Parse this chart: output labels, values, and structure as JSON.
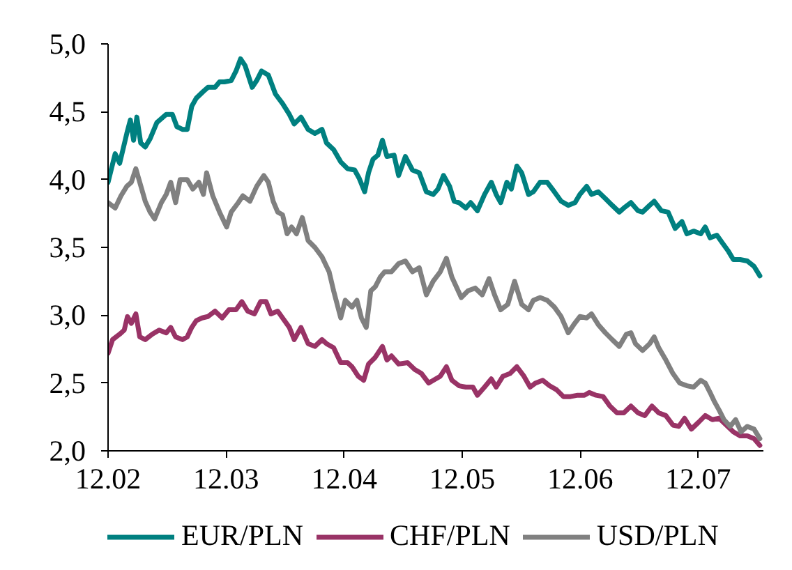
{
  "chart_data": {
    "type": "line",
    "series": [
      {
        "name": "EUR/PLN",
        "color": "#008080",
        "x": [
          "2002-12-01",
          "2002-12-23",
          "2003-01-06",
          "2003-01-28",
          "2003-02-08",
          "2003-02-18",
          "2003-02-28",
          "2003-03-12",
          "2003-03-26",
          "2003-04-10",
          "2003-05-01",
          "2003-05-30",
          "2003-06-18",
          "2003-07-02",
          "2003-07-19",
          "2003-08-03",
          "2003-08-17",
          "2003-08-31",
          "2003-09-22",
          "2003-10-06",
          "2003-10-28",
          "2003-11-11",
          "2003-11-26",
          "2003-12-17",
          "2004-01-01",
          "2004-01-15",
          "2004-01-29",
          "2004-02-20",
          "2004-03-05",
          "2004-03-20",
          "2004-04-10",
          "2004-05-02",
          "2004-05-24",
          "2004-06-14",
          "2004-06-29",
          "2004-07-20",
          "2004-08-11",
          "2004-09-01",
          "2004-09-23",
          "2004-10-07",
          "2004-10-29",
          "2004-11-20",
          "2004-12-11",
          "2005-01-02",
          "2005-01-16",
          "2005-02-02",
          "2005-02-14",
          "2005-02-28",
          "2005-03-15",
          "2005-03-29",
          "2005-04-12",
          "2005-05-04",
          "2005-05-18",
          "2005-06-08",
          "2005-06-30",
          "2005-07-21",
          "2005-08-12",
          "2005-09-02",
          "2005-09-17",
          "2005-10-04",
          "2005-10-23",
          "2005-11-06",
          "2005-11-21",
          "2005-12-12",
          "2005-12-27",
          "2006-01-17",
          "2006-02-08",
          "2006-03-01",
          "2006-03-16",
          "2006-03-30",
          "2006-04-18",
          "2006-05-02",
          "2006-05-19",
          "2006-06-03",
          "2006-06-24",
          "2006-07-09",
          "2006-07-30",
          "2006-08-21",
          "2006-09-12",
          "2006-10-03",
          "2006-10-25",
          "2006-11-15",
          "2006-11-30",
          "2006-12-21",
          "2007-01-05",
          "2007-01-26",
          "2007-02-17",
          "2007-03-10",
          "2007-04-01",
          "2007-04-15",
          "2007-05-07",
          "2007-05-29",
          "2007-06-12",
          "2007-07-04",
          "2007-07-18",
          "2007-08-09",
          "2007-08-30",
          "2007-09-21",
          "2007-10-12",
          "2007-10-27",
          "2007-11-17",
          "2007-12-09",
          "2007-12-23",
          "2008-01-07",
          "2008-01-28",
          "2008-02-15",
          "2008-03-04",
          "2008-03-19",
          "2008-04-09",
          "2008-05-01",
          "2008-05-22",
          "2008-06-09"
        ],
        "values": [
          3.98,
          4.19,
          4.12,
          4.34,
          4.44,
          4.29,
          4.46,
          4.27,
          4.24,
          4.3,
          4.42,
          4.48,
          4.48,
          4.39,
          4.37,
          4.37,
          4.54,
          4.6,
          4.65,
          4.68,
          4.68,
          4.72,
          4.72,
          4.73,
          4.8,
          4.89,
          4.84,
          4.68,
          4.73,
          4.8,
          4.77,
          4.63,
          4.56,
          4.48,
          4.41,
          4.46,
          4.37,
          4.34,
          4.37,
          4.27,
          4.22,
          4.13,
          4.08,
          4.07,
          4.01,
          3.91,
          4.05,
          4.15,
          4.18,
          4.29,
          4.17,
          4.18,
          4.03,
          4.17,
          4.07,
          4.05,
          3.91,
          3.89,
          3.93,
          4.03,
          3.95,
          3.84,
          3.83,
          3.79,
          3.83,
          3.77,
          3.89,
          3.98,
          3.89,
          3.83,
          3.98,
          3.93,
          4.1,
          4.05,
          3.89,
          3.91,
          3.98,
          3.98,
          3.91,
          3.84,
          3.81,
          3.83,
          3.89,
          3.95,
          3.89,
          3.91,
          3.86,
          3.81,
          3.76,
          3.79,
          3.83,
          3.77,
          3.76,
          3.81,
          3.84,
          3.77,
          3.76,
          3.64,
          3.69,
          3.6,
          3.62,
          3.6,
          3.65,
          3.57,
          3.59,
          3.53,
          3.47,
          3.41,
          3.41,
          3.4,
          3.36,
          3.29
        ]
      },
      {
        "name": "CHF/PLN",
        "color": "#993366",
        "x": [
          "2002-12-01",
          "2002-12-15",
          "2003-01-06",
          "2003-01-20",
          "2003-01-30",
          "2003-02-11",
          "2003-02-25",
          "2003-03-09",
          "2003-03-26",
          "2003-04-17",
          "2003-05-08",
          "2003-05-30",
          "2003-06-13",
          "2003-06-28",
          "2003-07-19",
          "2003-08-03",
          "2003-08-17",
          "2003-08-31",
          "2003-09-18",
          "2003-10-06",
          "2003-10-28",
          "2003-11-19",
          "2003-12-10",
          "2004-01-01",
          "2004-01-19",
          "2004-02-06",
          "2004-02-27",
          "2004-03-17",
          "2004-04-03",
          "2004-04-18",
          "2004-05-09",
          "2004-05-24",
          "2004-06-14",
          "2004-06-29",
          "2004-07-20",
          "2004-08-11",
          "2004-09-01",
          "2004-09-23",
          "2004-10-07",
          "2004-10-29",
          "2004-11-20",
          "2004-12-11",
          "2004-12-25",
          "2005-01-13",
          "2005-01-30",
          "2005-02-14",
          "2005-03-07",
          "2005-03-29",
          "2005-04-12",
          "2005-04-26",
          "2005-05-18",
          "2005-06-15",
          "2005-07-07",
          "2005-07-28",
          "2005-08-19",
          "2005-09-10",
          "2005-09-24",
          "2005-10-13",
          "2005-10-30",
          "2005-11-21",
          "2005-12-12",
          "2006-01-03",
          "2006-01-17",
          "2006-02-08",
          "2006-03-01",
          "2006-03-16",
          "2006-04-06",
          "2006-04-28",
          "2006-05-19",
          "2006-06-10",
          "2006-06-29",
          "2006-07-16",
          "2006-08-07",
          "2006-08-28",
          "2006-09-19",
          "2006-10-10",
          "2006-11-01",
          "2006-11-23",
          "2006-12-14",
          "2006-12-29",
          "2007-01-19",
          "2007-02-10",
          "2007-03-03",
          "2007-03-25",
          "2007-04-15",
          "2007-05-07",
          "2007-05-29",
          "2007-06-19",
          "2007-07-11",
          "2007-08-01",
          "2007-08-23",
          "2007-09-14",
          "2007-10-02",
          "2007-10-20",
          "2007-11-10",
          "2007-12-02",
          "2007-12-23",
          "2008-01-14",
          "2008-02-04",
          "2008-02-26",
          "2008-03-19",
          "2008-04-09",
          "2008-05-01",
          "2008-05-22",
          "2008-06-09"
        ],
        "values": [
          2.72,
          2.82,
          2.86,
          2.89,
          2.99,
          2.94,
          3.01,
          2.84,
          2.82,
          2.86,
          2.89,
          2.87,
          2.91,
          2.84,
          2.82,
          2.84,
          2.91,
          2.96,
          2.98,
          2.99,
          3.03,
          2.98,
          3.04,
          3.04,
          3.1,
          3.03,
          3.01,
          3.1,
          3.1,
          3.01,
          3.03,
          2.98,
          2.91,
          2.82,
          2.91,
          2.79,
          2.77,
          2.82,
          2.79,
          2.76,
          2.65,
          2.65,
          2.62,
          2.55,
          2.52,
          2.64,
          2.69,
          2.77,
          2.67,
          2.7,
          2.64,
          2.65,
          2.6,
          2.57,
          2.5,
          2.53,
          2.55,
          2.62,
          2.52,
          2.48,
          2.47,
          2.47,
          2.41,
          2.47,
          2.53,
          2.47,
          2.55,
          2.57,
          2.62,
          2.55,
          2.47,
          2.5,
          2.52,
          2.48,
          2.45,
          2.4,
          2.4,
          2.41,
          2.41,
          2.43,
          2.41,
          2.4,
          2.33,
          2.28,
          2.28,
          2.33,
          2.28,
          2.26,
          2.33,
          2.28,
          2.26,
          2.19,
          2.18,
          2.24,
          2.16,
          2.21,
          2.26,
          2.23,
          2.24,
          2.19,
          2.14,
          2.11,
          2.11,
          2.09,
          2.04
        ]
      },
      {
        "name": "USD/PLN",
        "color": "#808080",
        "x": [
          "2002-12-01",
          "2002-12-23",
          "2003-01-10",
          "2003-01-28",
          "2003-02-11",
          "2003-02-25",
          "2003-03-09",
          "2003-03-26",
          "2003-04-10",
          "2003-04-24",
          "2003-05-15",
          "2003-05-30",
          "2003-06-13",
          "2003-06-28",
          "2003-07-12",
          "2003-08-03",
          "2003-08-20",
          "2003-09-08",
          "2003-09-22",
          "2003-10-02",
          "2003-10-21",
          "2003-11-11",
          "2003-12-03",
          "2003-12-17",
          "2004-01-08",
          "2004-01-22",
          "2004-02-13",
          "2004-03-05",
          "2004-03-27",
          "2004-04-10",
          "2004-04-25",
          "2004-05-09",
          "2004-05-24",
          "2004-06-07",
          "2004-06-21",
          "2004-07-06",
          "2004-07-24",
          "2004-08-11",
          "2004-09-01",
          "2004-09-23",
          "2004-10-15",
          "2004-10-29",
          "2004-11-20",
          "2004-12-04",
          "2004-12-25",
          "2005-01-09",
          "2005-01-23",
          "2005-02-07",
          "2005-02-21",
          "2005-03-07",
          "2005-03-22",
          "2005-04-05",
          "2005-04-26",
          "2005-05-18",
          "2005-06-08",
          "2005-06-30",
          "2005-07-21",
          "2005-08-12",
          "2005-09-02",
          "2005-09-24",
          "2005-10-13",
          "2005-10-30",
          "2005-11-28",
          "2005-12-19",
          "2006-01-10",
          "2006-02-01",
          "2006-02-22",
          "2006-03-11",
          "2006-03-30",
          "2006-04-21",
          "2006-05-12",
          "2006-06-03",
          "2006-06-24",
          "2006-07-09",
          "2006-07-30",
          "2006-08-21",
          "2006-09-12",
          "2006-10-03",
          "2006-10-25",
          "2006-11-11",
          "2006-11-30",
          "2006-12-21",
          "2007-01-05",
          "2007-01-26",
          "2007-02-17",
          "2007-03-10",
          "2007-04-01",
          "2007-04-23",
          "2007-05-07",
          "2007-05-21",
          "2007-06-12",
          "2007-07-04",
          "2007-07-18",
          "2007-08-01",
          "2007-08-23",
          "2007-09-14",
          "2007-10-05",
          "2007-10-27",
          "2007-11-17",
          "2007-12-09",
          "2007-12-23",
          "2008-01-07",
          "2008-01-21",
          "2008-02-04",
          "2008-02-19",
          "2008-03-09",
          "2008-03-26",
          "2008-04-12",
          "2008-05-01",
          "2008-05-22",
          "2008-06-09"
        ],
        "values": [
          3.83,
          3.79,
          3.88,
          3.95,
          3.98,
          4.08,
          3.98,
          3.84,
          3.76,
          3.71,
          3.83,
          3.89,
          3.98,
          3.83,
          4.0,
          4.0,
          3.93,
          3.98,
          3.89,
          4.05,
          3.88,
          3.76,
          3.65,
          3.76,
          3.83,
          3.88,
          3.84,
          3.95,
          4.03,
          3.98,
          3.84,
          3.76,
          3.74,
          3.6,
          3.65,
          3.6,
          3.72,
          3.55,
          3.5,
          3.43,
          3.32,
          3.18,
          2.98,
          3.11,
          3.06,
          3.11,
          2.98,
          2.91,
          3.18,
          3.21,
          3.28,
          3.32,
          3.32,
          3.38,
          3.4,
          3.32,
          3.35,
          3.15,
          3.25,
          3.32,
          3.42,
          3.28,
          3.13,
          3.18,
          3.2,
          3.15,
          3.27,
          3.15,
          3.04,
          3.08,
          3.25,
          3.08,
          3.04,
          3.11,
          3.13,
          3.11,
          3.06,
          2.99,
          2.87,
          2.93,
          2.99,
          2.98,
          3.01,
          2.93,
          2.87,
          2.82,
          2.77,
          2.86,
          2.87,
          2.79,
          2.74,
          2.79,
          2.84,
          2.76,
          2.67,
          2.57,
          2.5,
          2.48,
          2.47,
          2.52,
          2.5,
          2.43,
          2.36,
          2.3,
          2.23,
          2.18,
          2.23,
          2.14,
          2.18,
          2.16,
          2.09
        ]
      }
    ],
    "xlim": [
      "2002-12-01",
      "2008-06-20"
    ],
    "xticks": [
      {
        "value": "2002-12-01",
        "label": "12.02"
      },
      {
        "value": "2003-12-01",
        "label": "12.03"
      },
      {
        "value": "2004-12-01",
        "label": "12.04"
      },
      {
        "value": "2005-12-01",
        "label": "12.05"
      },
      {
        "value": "2006-12-01",
        "label": "12.06"
      },
      {
        "value": "2007-12-01",
        "label": "12.07"
      }
    ],
    "ylim": [
      2,
      5
    ],
    "yticks": [
      {
        "value": 2,
        "label": "2,0"
      },
      {
        "value": 2.5,
        "label": "2,5"
      },
      {
        "value": 3,
        "label": "3,0"
      },
      {
        "value": 3.5,
        "label": "3,5"
      },
      {
        "value": 4,
        "label": "4,0"
      },
      {
        "value": 4.5,
        "label": "4,5"
      },
      {
        "value": 5,
        "label": "5,0"
      }
    ],
    "legend": "bottom"
  }
}
